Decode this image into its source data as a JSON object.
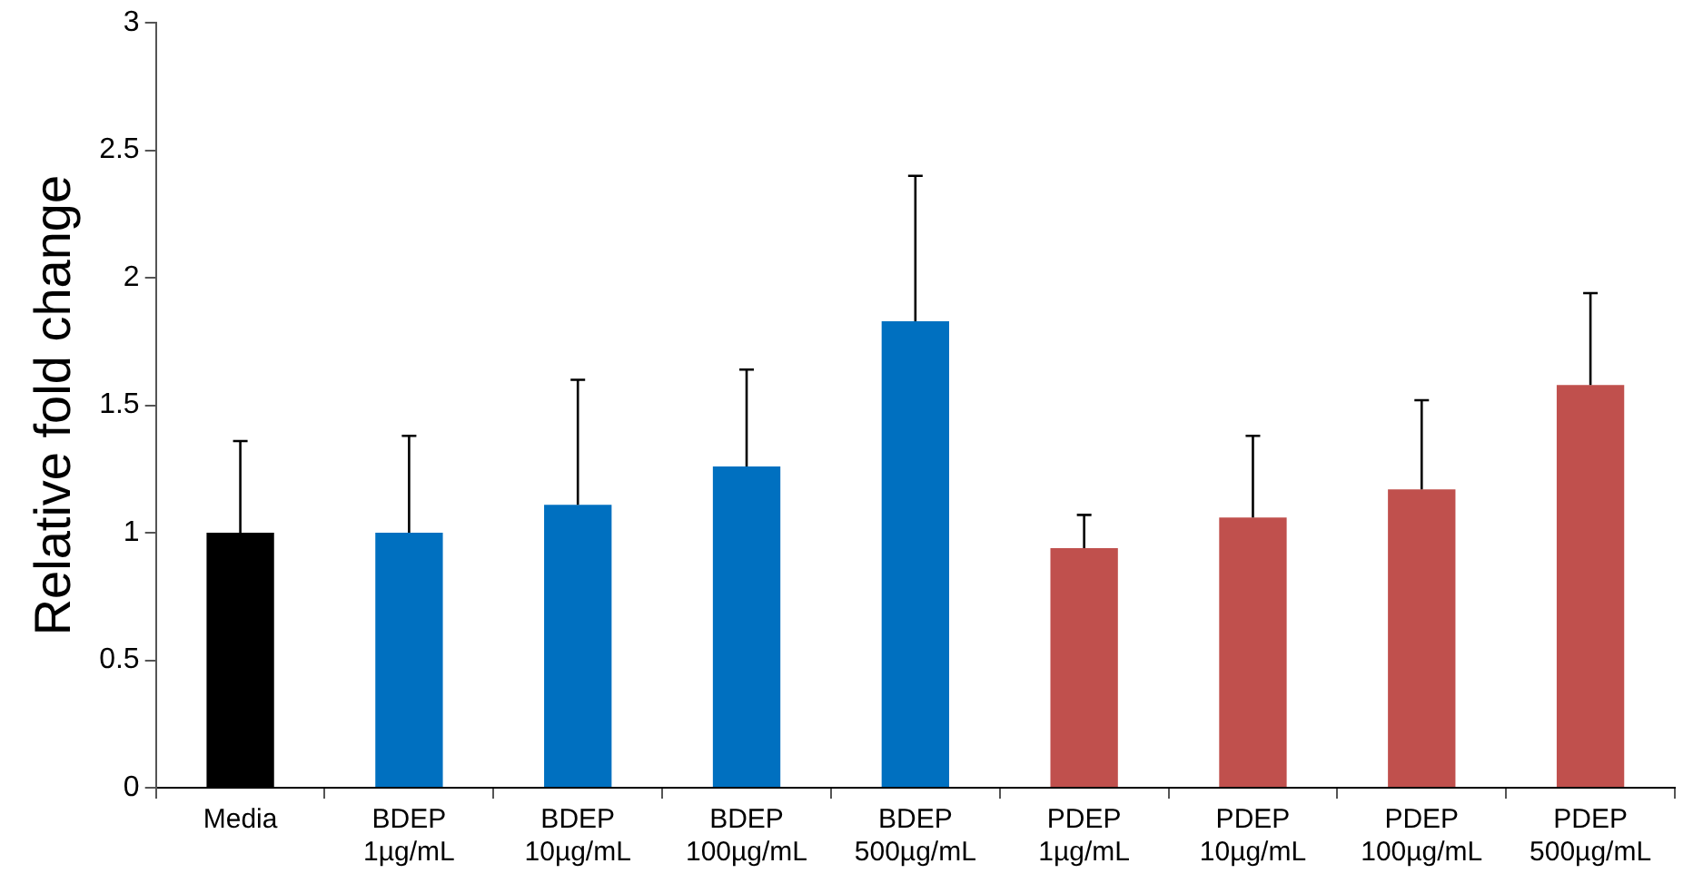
{
  "chart_data": {
    "type": "bar",
    "ylabel": "Relative fold change",
    "categories": [
      "Media",
      "BDEP 1µg/mL",
      "BDEP 10µg/mL",
      "BDEP 100µg/mL",
      "BDEP 500µg/mL",
      "PDEP 1µg/mL",
      "PDEP 10µg/mL",
      "PDEP 100µg/mL",
      "PDEP 500µg/mL"
    ],
    "values": [
      1.0,
      1.0,
      1.11,
      1.26,
      1.83,
      0.94,
      1.06,
      1.17,
      1.58
    ],
    "colors": [
      "#000000",
      "#0070c0",
      "#0070c0",
      "#0070c0",
      "#0070c0",
      "#c0504d",
      "#c0504d",
      "#c0504d",
      "#c0504d"
    ],
    "errors": [
      [
        1.0,
        1.36
      ],
      [
        1.0,
        1.38
      ],
      [
        1.11,
        1.6
      ],
      [
        1.26,
        1.64
      ],
      [
        1.83,
        2.4
      ],
      [
        0.94,
        1.07
      ],
      [
        1.06,
        1.38
      ],
      [
        1.17,
        1.52
      ],
      [
        1.58,
        1.94
      ]
    ],
    "ylim": [
      0,
      3
    ],
    "yticks": [
      0,
      0.5,
      1,
      1.5,
      2,
      2.5,
      3
    ],
    "grid": false,
    "legend": false
  }
}
